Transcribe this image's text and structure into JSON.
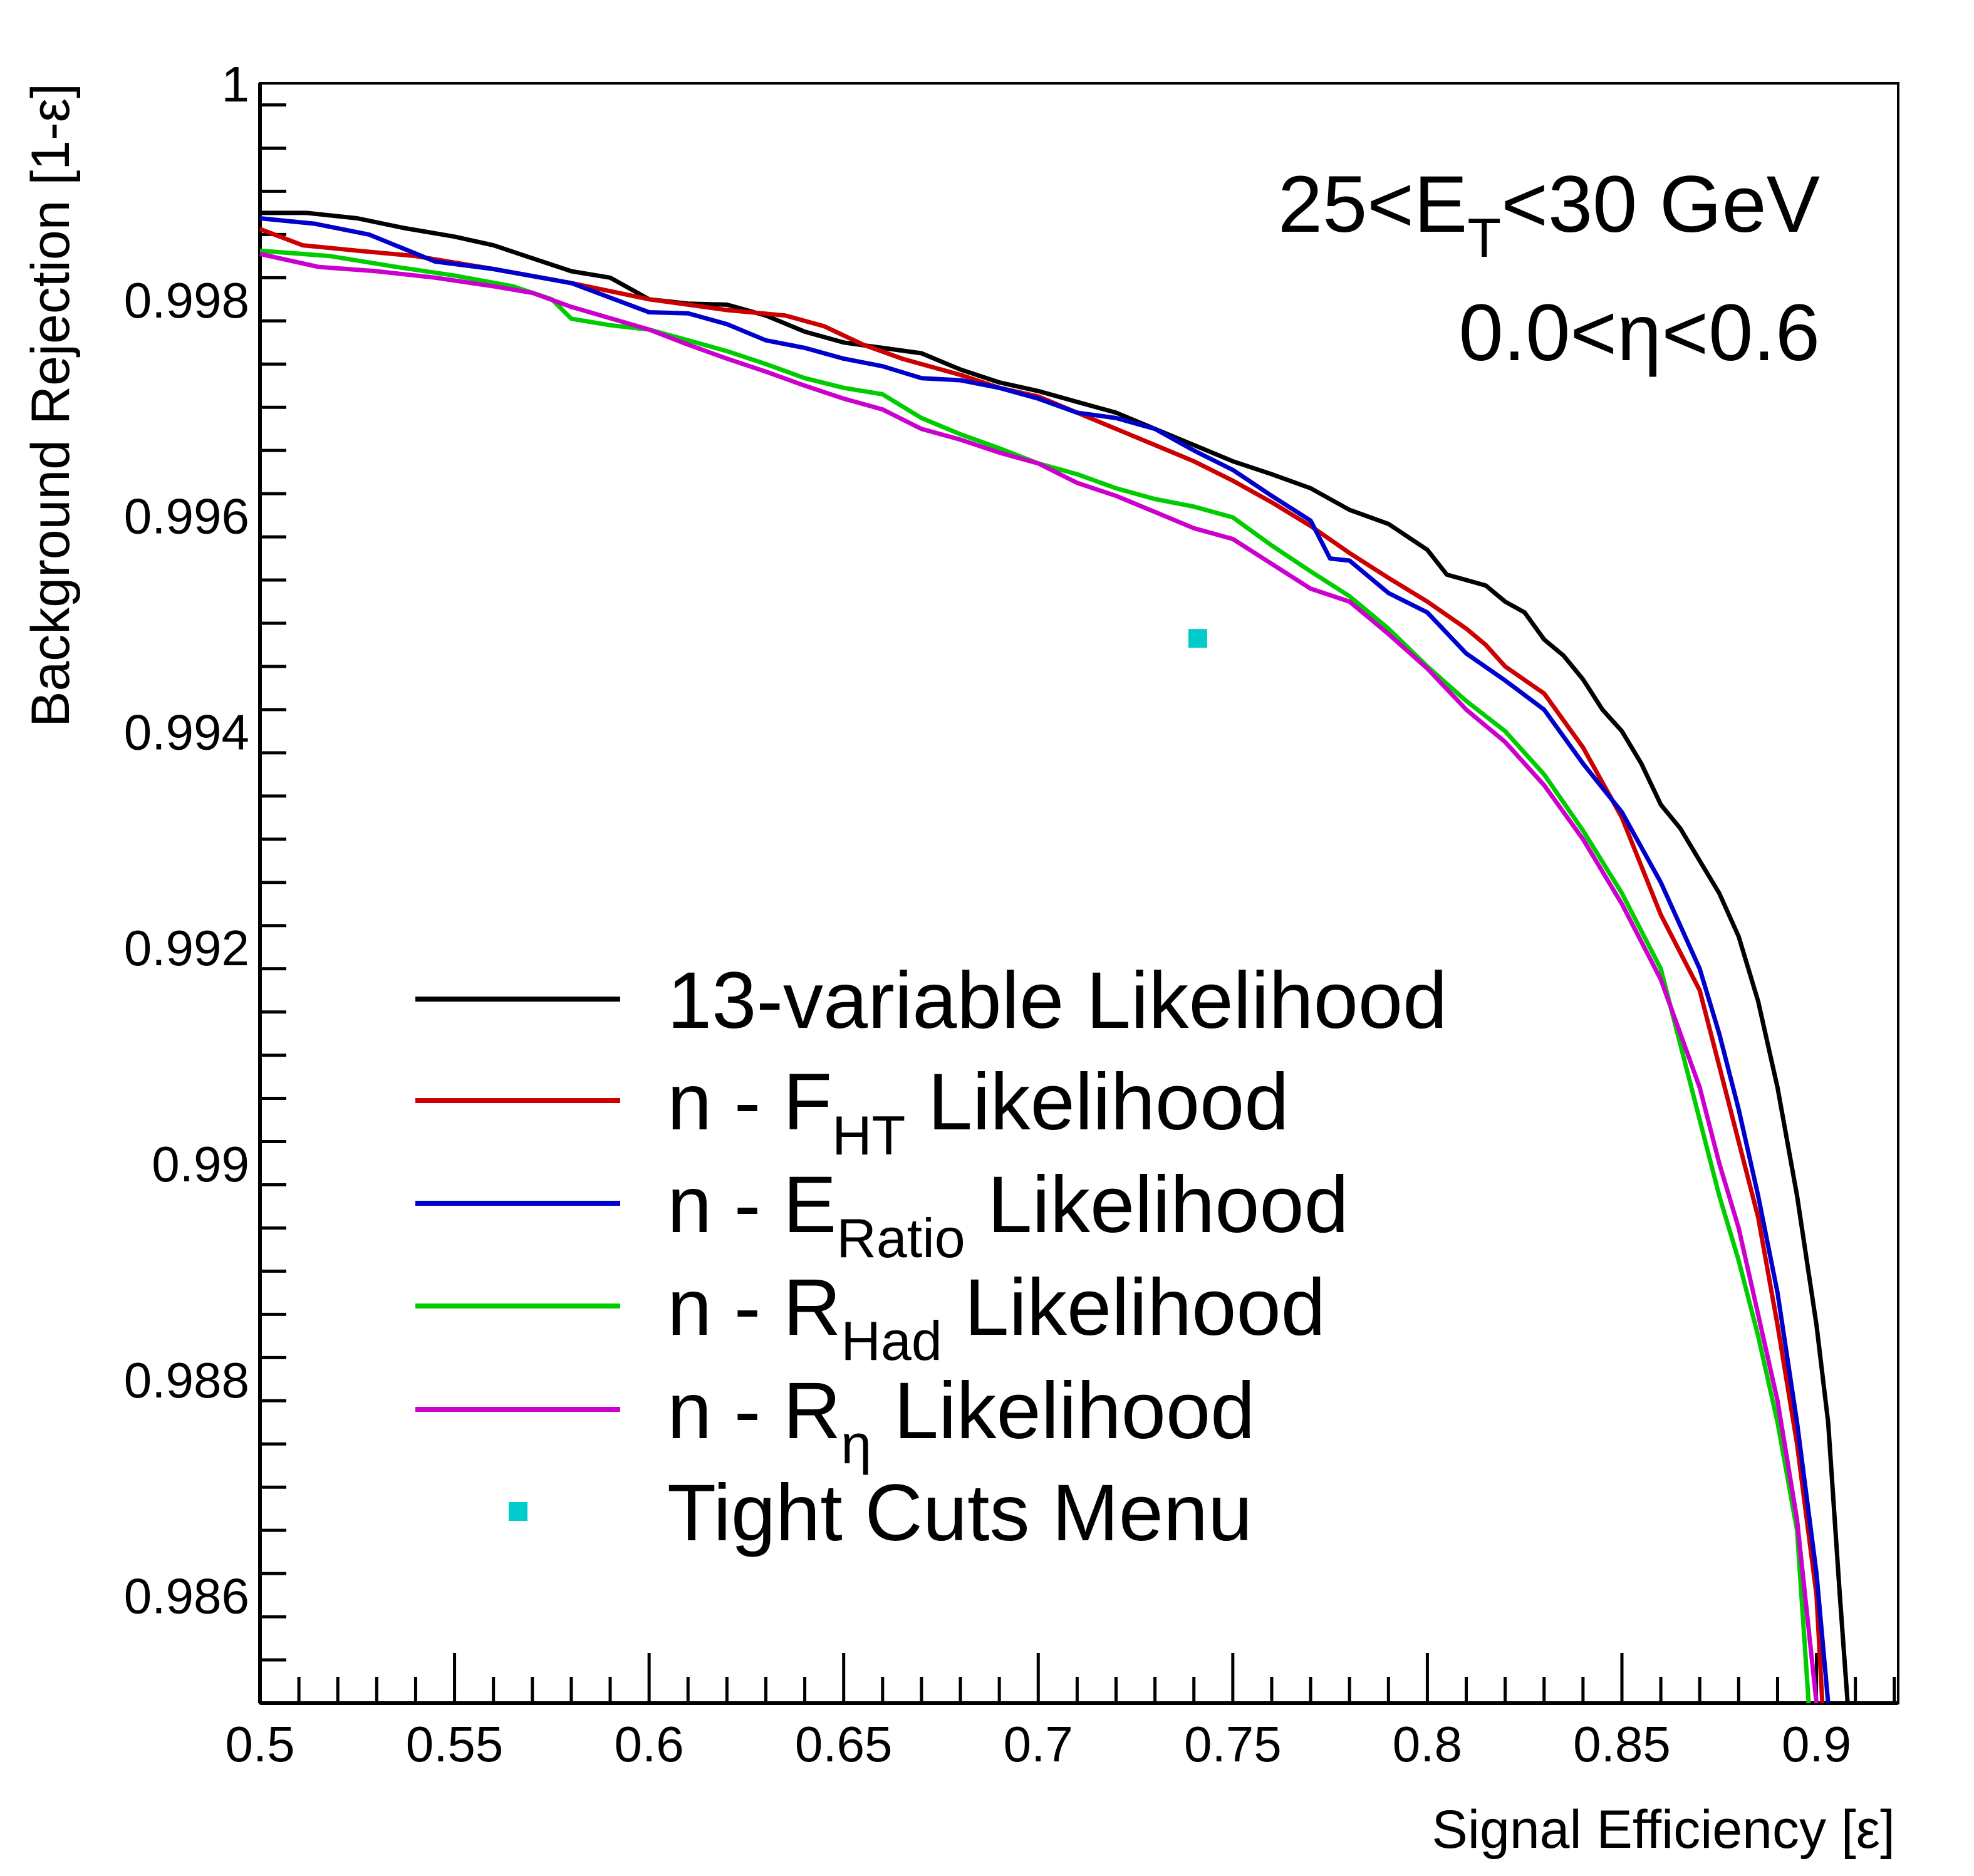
{
  "chart_data": {
    "type": "line",
    "xlabel": "Signal Efficiency [ε]",
    "ylabel": "Background Rejection [1-ε]",
    "xlim": [
      0.5,
      0.921
    ],
    "ylim": [
      0.985,
      1.0
    ],
    "x_ticks": [
      0.5,
      0.55,
      0.6,
      0.65,
      0.7,
      0.75,
      0.8,
      0.85,
      0.9
    ],
    "x_tick_labels": [
      "0.5",
      "0.55",
      "0.6",
      "0.65",
      "0.7",
      "0.75",
      "0.8",
      "0.85",
      "0.9"
    ],
    "y_ticks": [
      0.986,
      0.988,
      0.99,
      0.992,
      0.994,
      0.996,
      0.998,
      1.0
    ],
    "y_tick_labels": [
      "0.986",
      "0.988",
      "0.99",
      "0.992",
      "0.994",
      "0.996",
      "0.998",
      "1"
    ],
    "annotations": {
      "line1": {
        "base": "25<E",
        "sub": "T",
        "tail": "<30 GeV"
      },
      "line2": "0.0<η<0.6"
    },
    "legend_position": "bottom-left",
    "grid": false,
    "series": [
      {
        "name": "13-variable Likelihood",
        "legend_label": {
          "prefix": "13-variable Likelihood",
          "sub": "",
          "suffix": ""
        },
        "color": "#000000",
        "points": [
          [
            0.5,
            0.9988
          ],
          [
            0.512,
            0.9988
          ],
          [
            0.525,
            0.99875
          ],
          [
            0.537,
            0.99866
          ],
          [
            0.55,
            0.99858
          ],
          [
            0.56,
            0.9985
          ],
          [
            0.57,
            0.99838
          ],
          [
            0.58,
            0.99826
          ],
          [
            0.59,
            0.9982
          ],
          [
            0.6,
            0.998
          ],
          [
            0.61,
            0.99796
          ],
          [
            0.62,
            0.99795
          ],
          [
            0.63,
            0.99785
          ],
          [
            0.64,
            0.9977
          ],
          [
            0.65,
            0.9976
          ],
          [
            0.66,
            0.99755
          ],
          [
            0.67,
            0.9975
          ],
          [
            0.68,
            0.99735
          ],
          [
            0.69,
            0.99723
          ],
          [
            0.7,
            0.99715
          ],
          [
            0.71,
            0.99705
          ],
          [
            0.72,
            0.99695
          ],
          [
            0.73,
            0.9968
          ],
          [
            0.74,
            0.99665
          ],
          [
            0.75,
            0.9965
          ],
          [
            0.76,
            0.99638
          ],
          [
            0.77,
            0.99625
          ],
          [
            0.78,
            0.99605
          ],
          [
            0.79,
            0.99592
          ],
          [
            0.8,
            0.99568
          ],
          [
            0.805,
            0.99545
          ],
          [
            0.81,
            0.9954
          ],
          [
            0.815,
            0.99535
          ],
          [
            0.82,
            0.9952
          ],
          [
            0.825,
            0.9951
          ],
          [
            0.83,
            0.99485
          ],
          [
            0.835,
            0.9947
          ],
          [
            0.84,
            0.99448
          ],
          [
            0.845,
            0.9942
          ],
          [
            0.85,
            0.994
          ],
          [
            0.855,
            0.9937
          ],
          [
            0.86,
            0.99332
          ],
          [
            0.865,
            0.9931
          ],
          [
            0.87,
            0.9928
          ],
          [
            0.875,
            0.9925
          ],
          [
            0.88,
            0.9921
          ],
          [
            0.885,
            0.9915
          ],
          [
            0.89,
            0.9907
          ],
          [
            0.895,
            0.9897
          ],
          [
            0.9,
            0.9885
          ],
          [
            0.903,
            0.9876
          ],
          [
            0.906,
            0.986
          ],
          [
            0.908,
            0.985
          ]
        ]
      },
      {
        "name": "n - F_HT Likelihood",
        "legend_label": {
          "prefix": "n - F",
          "sub": "HT",
          "suffix": " Likelihood"
        },
        "color": "#cc0000",
        "points": [
          [
            0.5,
            0.99865
          ],
          [
            0.511,
            0.9985
          ],
          [
            0.525,
            0.99845
          ],
          [
            0.54,
            0.9984
          ],
          [
            0.56,
            0.99828
          ],
          [
            0.58,
            0.99815
          ],
          [
            0.6,
            0.998
          ],
          [
            0.62,
            0.9979
          ],
          [
            0.635,
            0.99785
          ],
          [
            0.645,
            0.99775
          ],
          [
            0.655,
            0.99758
          ],
          [
            0.665,
            0.99745
          ],
          [
            0.68,
            0.9973
          ],
          [
            0.69,
            0.99718
          ],
          [
            0.7,
            0.9971
          ],
          [
            0.71,
            0.99695
          ],
          [
            0.72,
            0.9968
          ],
          [
            0.73,
            0.99665
          ],
          [
            0.74,
            0.9965
          ],
          [
            0.75,
            0.99632
          ],
          [
            0.76,
            0.99612
          ],
          [
            0.77,
            0.9959
          ],
          [
            0.78,
            0.99565
          ],
          [
            0.79,
            0.99542
          ],
          [
            0.8,
            0.9952
          ],
          [
            0.81,
            0.99495
          ],
          [
            0.815,
            0.9948
          ],
          [
            0.82,
            0.9946
          ],
          [
            0.83,
            0.99435
          ],
          [
            0.84,
            0.99385
          ],
          [
            0.85,
            0.9932
          ],
          [
            0.86,
            0.9923
          ],
          [
            0.87,
            0.9916
          ],
          [
            0.875,
            0.9909
          ],
          [
            0.88,
            0.9902
          ],
          [
            0.885,
            0.9895
          ],
          [
            0.89,
            0.9885
          ],
          [
            0.895,
            0.9874
          ],
          [
            0.9,
            0.986
          ],
          [
            0.9015,
            0.985
          ]
        ]
      },
      {
        "name": "n - E_Ratio Likelihood",
        "legend_label": {
          "prefix": "n - E",
          "sub": "Ratio",
          "suffix": " Likelihood"
        },
        "color": "#0000cc",
        "points": [
          [
            0.5,
            0.99875
          ],
          [
            0.514,
            0.9987
          ],
          [
            0.528,
            0.9986
          ],
          [
            0.545,
            0.99835
          ],
          [
            0.56,
            0.99828
          ],
          [
            0.58,
            0.99815
          ],
          [
            0.6,
            0.99788
          ],
          [
            0.61,
            0.99787
          ],
          [
            0.62,
            0.99777
          ],
          [
            0.63,
            0.99762
          ],
          [
            0.64,
            0.99755
          ],
          [
            0.65,
            0.99745
          ],
          [
            0.66,
            0.99738
          ],
          [
            0.67,
            0.99727
          ],
          [
            0.68,
            0.99725
          ],
          [
            0.69,
            0.99718
          ],
          [
            0.7,
            0.99708
          ],
          [
            0.71,
            0.99695
          ],
          [
            0.72,
            0.9969
          ],
          [
            0.73,
            0.9968
          ],
          [
            0.74,
            0.9966
          ],
          [
            0.75,
            0.99642
          ],
          [
            0.76,
            0.99618
          ],
          [
            0.77,
            0.99595
          ],
          [
            0.775,
            0.9956
          ],
          [
            0.78,
            0.99558
          ],
          [
            0.79,
            0.99528
          ],
          [
            0.8,
            0.9951
          ],
          [
            0.81,
            0.99472
          ],
          [
            0.82,
            0.99447
          ],
          [
            0.83,
            0.9942
          ],
          [
            0.84,
            0.9937
          ],
          [
            0.85,
            0.99325
          ],
          [
            0.86,
            0.9926
          ],
          [
            0.87,
            0.9918
          ],
          [
            0.875,
            0.9912
          ],
          [
            0.88,
            0.9905
          ],
          [
            0.885,
            0.9897
          ],
          [
            0.89,
            0.9888
          ],
          [
            0.895,
            0.9876
          ],
          [
            0.9,
            0.9862
          ],
          [
            0.903,
            0.985
          ]
        ]
      },
      {
        "name": "n - R_Had Likelihood",
        "legend_label": {
          "prefix": "n - R",
          "sub": "Had",
          "suffix": " Likelihood"
        },
        "color": "#00cc00",
        "points": [
          [
            0.5,
            0.99845
          ],
          [
            0.518,
            0.9984
          ],
          [
            0.535,
            0.9983
          ],
          [
            0.55,
            0.99822
          ],
          [
            0.565,
            0.99812
          ],
          [
            0.575,
            0.998
          ],
          [
            0.58,
            0.99782
          ],
          [
            0.59,
            0.99776
          ],
          [
            0.6,
            0.99772
          ],
          [
            0.61,
            0.99762
          ],
          [
            0.62,
            0.99752
          ],
          [
            0.63,
            0.9974
          ],
          [
            0.64,
            0.99727
          ],
          [
            0.65,
            0.99718
          ],
          [
            0.66,
            0.99712
          ],
          [
            0.67,
            0.9969
          ],
          [
            0.68,
            0.99675
          ],
          [
            0.69,
            0.99662
          ],
          [
            0.7,
            0.99648
          ],
          [
            0.71,
            0.99638
          ],
          [
            0.72,
            0.99625
          ],
          [
            0.73,
            0.99615
          ],
          [
            0.74,
            0.99608
          ],
          [
            0.75,
            0.99598
          ],
          [
            0.76,
            0.99572
          ],
          [
            0.77,
            0.99548
          ],
          [
            0.78,
            0.99525
          ],
          [
            0.79,
            0.99495
          ],
          [
            0.8,
            0.9946
          ],
          [
            0.81,
            0.99428
          ],
          [
            0.82,
            0.994
          ],
          [
            0.83,
            0.9936
          ],
          [
            0.84,
            0.99308
          ],
          [
            0.85,
            0.9925
          ],
          [
            0.86,
            0.9918
          ],
          [
            0.865,
            0.9911
          ],
          [
            0.87,
            0.9904
          ],
          [
            0.875,
            0.9897
          ],
          [
            0.88,
            0.9891
          ],
          [
            0.885,
            0.9884
          ],
          [
            0.89,
            0.9876
          ],
          [
            0.895,
            0.9866
          ],
          [
            0.898,
            0.985
          ]
        ]
      },
      {
        "name": "n - R_η Likelihood",
        "legend_label": {
          "prefix": "n - R",
          "sub": "η",
          "suffix": " Likelihood"
        },
        "color": "#cc00cc",
        "points": [
          [
            0.5,
            0.99842
          ],
          [
            0.515,
            0.9983
          ],
          [
            0.53,
            0.99826
          ],
          [
            0.545,
            0.9982
          ],
          [
            0.56,
            0.99812
          ],
          [
            0.57,
            0.99806
          ],
          [
            0.58,
            0.99793
          ],
          [
            0.6,
            0.99772
          ],
          [
            0.61,
            0.99758
          ],
          [
            0.62,
            0.99745
          ],
          [
            0.63,
            0.99733
          ],
          [
            0.64,
            0.9972
          ],
          [
            0.65,
            0.99708
          ],
          [
            0.66,
            0.99698
          ],
          [
            0.67,
            0.9968
          ],
          [
            0.68,
            0.9967
          ],
          [
            0.69,
            0.99658
          ],
          [
            0.7,
            0.99648
          ],
          [
            0.71,
            0.9963
          ],
          [
            0.72,
            0.99618
          ],
          [
            0.73,
            0.99603
          ],
          [
            0.74,
            0.99588
          ],
          [
            0.75,
            0.99578
          ],
          [
            0.76,
            0.99555
          ],
          [
            0.77,
            0.99532
          ],
          [
            0.78,
            0.9952
          ],
          [
            0.79,
            0.9949
          ],
          [
            0.8,
            0.99458
          ],
          [
            0.81,
            0.9942
          ],
          [
            0.82,
            0.9939
          ],
          [
            0.83,
            0.9935
          ],
          [
            0.84,
            0.993
          ],
          [
            0.85,
            0.9924
          ],
          [
            0.86,
            0.9917
          ],
          [
            0.865,
            0.9912
          ],
          [
            0.87,
            0.9907
          ],
          [
            0.875,
            0.99
          ],
          [
            0.88,
            0.9894
          ],
          [
            0.885,
            0.9886
          ],
          [
            0.89,
            0.9878
          ],
          [
            0.895,
            0.9867
          ],
          [
            0.9,
            0.985
          ]
        ]
      }
    ],
    "marker": {
      "name": "Tight Cuts Menu",
      "color": "#00cccc",
      "x": 0.741,
      "y": 0.99486
    }
  }
}
